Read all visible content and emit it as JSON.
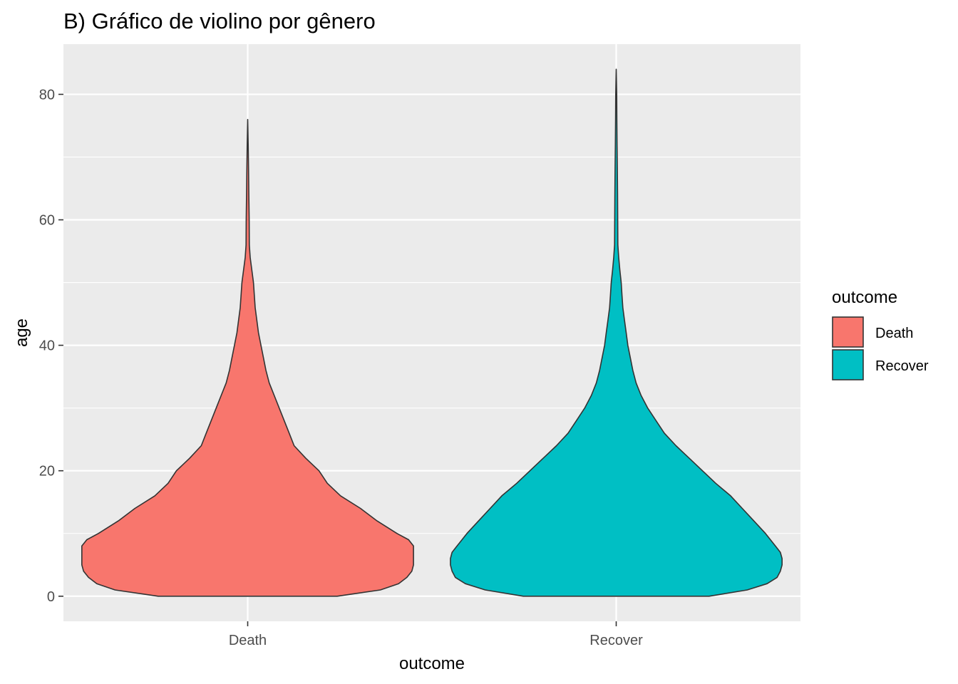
{
  "chart_data": {
    "type": "violin",
    "title": "B) Gráfico de violino por gênero",
    "xlabel": "outcome",
    "ylabel": "age",
    "categories": [
      "Death",
      "Recover"
    ],
    "ylim": [
      -4,
      88
    ],
    "yticks": [
      0,
      20,
      40,
      60,
      80
    ],
    "ytick_labels": [
      "0",
      "20",
      "40",
      "60",
      "80"
    ],
    "grid": true,
    "panel_background": "#ebebeb",
    "grid_color": "#ffffff",
    "outline_color": "#333333",
    "legend": {
      "title": "outcome",
      "position": "right",
      "entries": [
        {
          "label": "Death",
          "color": "#F8766D"
        },
        {
          "label": "Recover",
          "color": "#00BFC4"
        }
      ]
    },
    "series": [
      {
        "category": "Death",
        "color": "#F8766D",
        "y_min": 0,
        "y_max": 76,
        "density_profile": [
          [
            0,
            0.54
          ],
          [
            1,
            0.8
          ],
          [
            2,
            0.91
          ],
          [
            3,
            0.96
          ],
          [
            4,
            0.99
          ],
          [
            5,
            1.0
          ],
          [
            6,
            1.0
          ],
          [
            8,
            1.0
          ],
          [
            9,
            0.97
          ],
          [
            10,
            0.9
          ],
          [
            12,
            0.78
          ],
          [
            14,
            0.68
          ],
          [
            16,
            0.56
          ],
          [
            18,
            0.48
          ],
          [
            20,
            0.43
          ],
          [
            22,
            0.35
          ],
          [
            24,
            0.28
          ],
          [
            26,
            0.25
          ],
          [
            28,
            0.22
          ],
          [
            30,
            0.19
          ],
          [
            32,
            0.16
          ],
          [
            34,
            0.13
          ],
          [
            36,
            0.11
          ],
          [
            38,
            0.095
          ],
          [
            40,
            0.08
          ],
          [
            42,
            0.065
          ],
          [
            44,
            0.055
          ],
          [
            46,
            0.045
          ],
          [
            48,
            0.04
          ],
          [
            50,
            0.035
          ],
          [
            52,
            0.025
          ],
          [
            54,
            0.015
          ],
          [
            56,
            0.01
          ],
          [
            60,
            0.009
          ],
          [
            64,
            0.007
          ],
          [
            68,
            0.005
          ],
          [
            72,
            0.003
          ],
          [
            76,
            0
          ]
        ]
      },
      {
        "category": "Recover",
        "color": "#00BFC4",
        "y_min": 0,
        "y_max": 84,
        "density_profile": [
          [
            0,
            0.56
          ],
          [
            1,
            0.79
          ],
          [
            2,
            0.91
          ],
          [
            3,
            0.97
          ],
          [
            4,
            0.99
          ],
          [
            5,
            1.0
          ],
          [
            6,
            1.0
          ],
          [
            7,
            0.99
          ],
          [
            8,
            0.96
          ],
          [
            10,
            0.9
          ],
          [
            12,
            0.83
          ],
          [
            14,
            0.76
          ],
          [
            16,
            0.69
          ],
          [
            18,
            0.6
          ],
          [
            20,
            0.52
          ],
          [
            22,
            0.44
          ],
          [
            24,
            0.36
          ],
          [
            26,
            0.29
          ],
          [
            28,
            0.24
          ],
          [
            30,
            0.19
          ],
          [
            32,
            0.15
          ],
          [
            34,
            0.12
          ],
          [
            36,
            0.1
          ],
          [
            38,
            0.085
          ],
          [
            40,
            0.07
          ],
          [
            42,
            0.06
          ],
          [
            44,
            0.05
          ],
          [
            46,
            0.04
          ],
          [
            48,
            0.035
          ],
          [
            50,
            0.03
          ],
          [
            52,
            0.022
          ],
          [
            54,
            0.015
          ],
          [
            56,
            0.01
          ],
          [
            60,
            0.009
          ],
          [
            64,
            0.008
          ],
          [
            68,
            0.007
          ],
          [
            72,
            0.005
          ],
          [
            76,
            0.004
          ],
          [
            80,
            0.003
          ],
          [
            84,
            0
          ]
        ]
      }
    ]
  }
}
